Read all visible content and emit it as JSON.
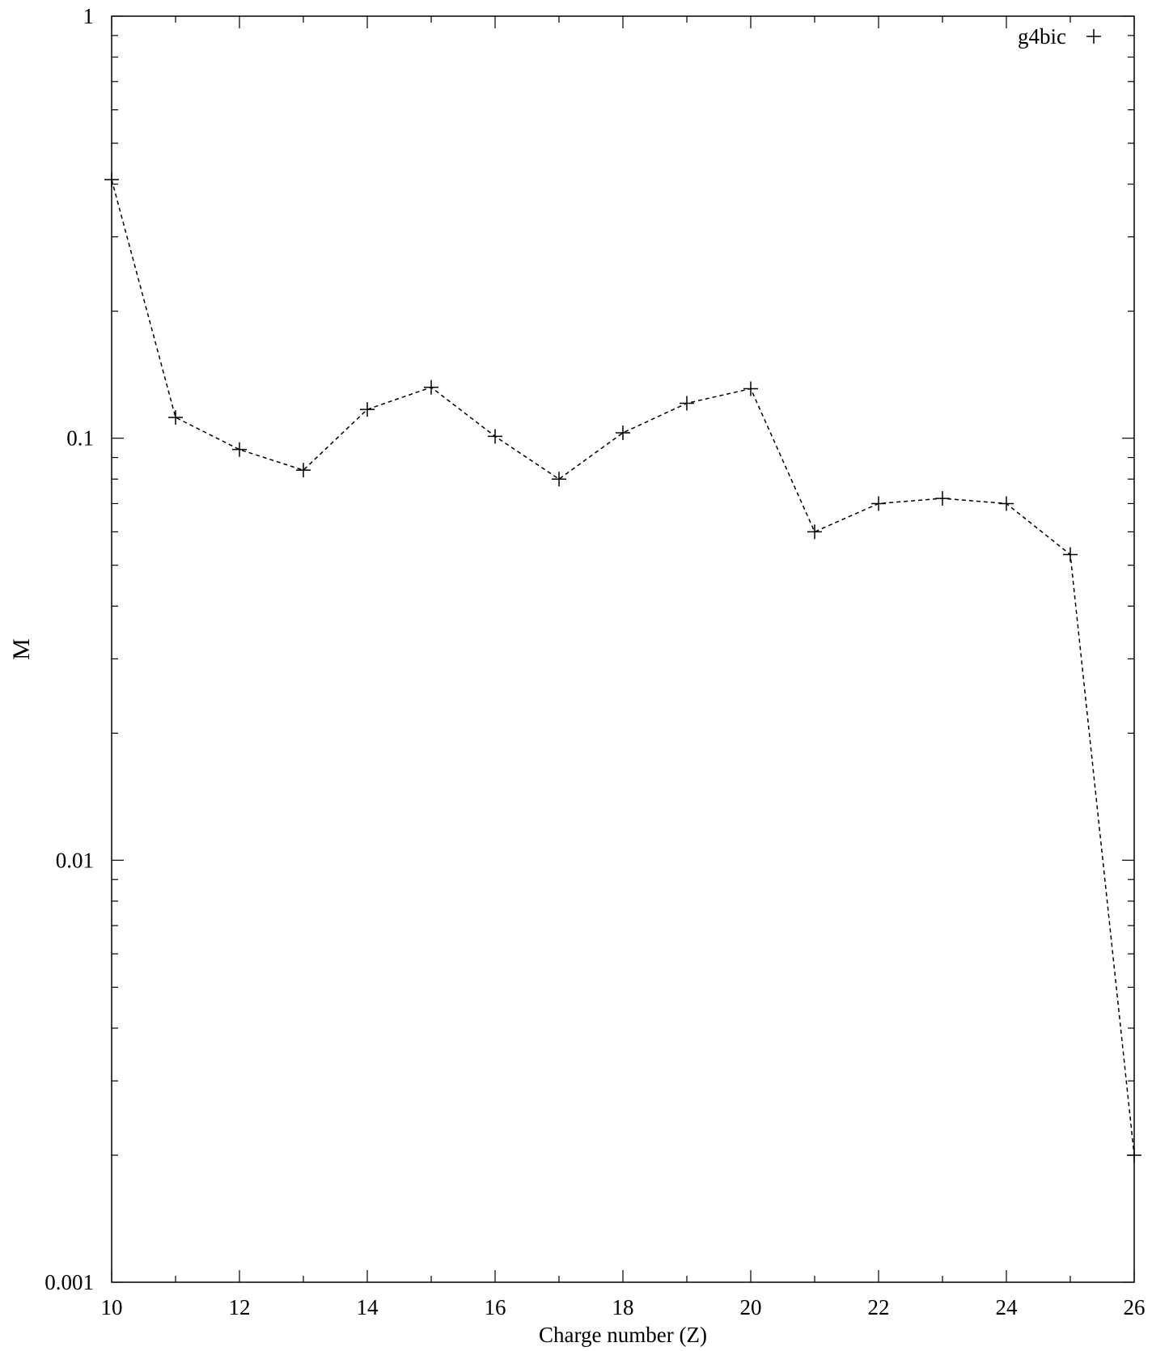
{
  "chart_data": {
    "type": "line",
    "title": "",
    "xlabel": "Charge number (Z)",
    "ylabel": "M",
    "xlim": [
      10,
      26
    ],
    "ylim": [
      0.001,
      1
    ],
    "yscale": "log",
    "grid": false,
    "legend_position": "top-right",
    "x_ticks": [
      10,
      12,
      14,
      16,
      18,
      20,
      22,
      24,
      26
    ],
    "x_tick_labels": [
      "10",
      "12",
      "14",
      "16",
      "18",
      "20",
      "22",
      "24",
      "26"
    ],
    "y_ticks": [
      0.001,
      0.01,
      0.1,
      1
    ],
    "y_tick_labels": [
      "0.001",
      "0.01",
      "0.1",
      "1"
    ],
    "series": [
      {
        "name": "g4bic",
        "marker": "plus",
        "line_style": "dashed",
        "color": "#000000",
        "x": [
          10,
          11,
          12,
          13,
          14,
          15,
          16,
          17,
          18,
          19,
          20,
          21,
          22,
          23,
          24,
          25,
          26
        ],
        "y": [
          0.41,
          0.112,
          0.094,
          0.084,
          0.117,
          0.132,
          0.101,
          0.08,
          0.103,
          0.121,
          0.131,
          0.06,
          0.07,
          0.072,
          0.07,
          0.053,
          0.002
        ]
      }
    ]
  }
}
